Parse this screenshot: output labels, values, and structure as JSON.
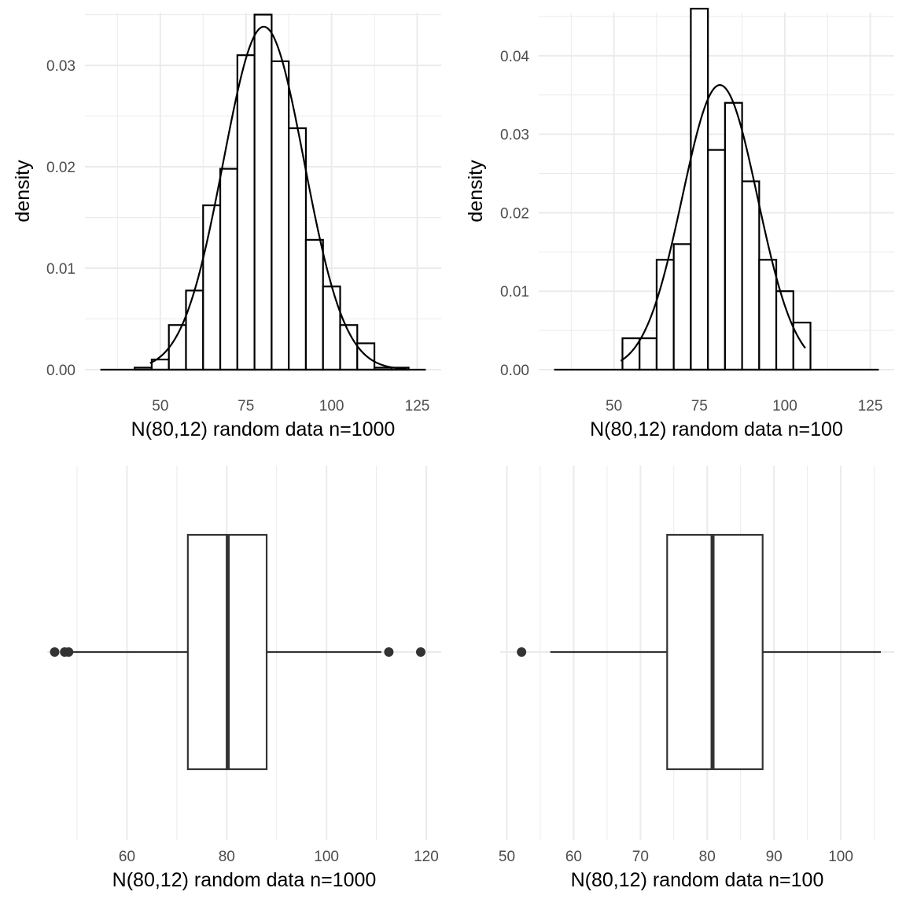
{
  "chart_data": [
    {
      "type": "bar",
      "subtype": "histogram-with-density",
      "xlabel": "N(80,12) random data n=1000",
      "ylabel": "density",
      "x_ticks": [
        50,
        75,
        100,
        125
      ],
      "x_ticks_label": [
        "50",
        "75",
        "100",
        "125"
      ],
      "y_ticks": [
        0,
        0.01,
        0.02,
        0.03
      ],
      "y_ticks_label": [
        "0.00",
        "0.01",
        "0.02",
        "0.03"
      ],
      "xlim": [
        28,
        132
      ],
      "ylim": [
        0,
        0.0352
      ],
      "grid": true,
      "bins": [
        {
          "x0": 32.5,
          "x1": 37.5,
          "density": 0
        },
        {
          "x0": 37.5,
          "x1": 42.5,
          "density": 0
        },
        {
          "x0": 42.5,
          "x1": 47.5,
          "density": 0.0002
        },
        {
          "x0": 47.5,
          "x1": 52.5,
          "density": 0.001
        },
        {
          "x0": 52.5,
          "x1": 57.5,
          "density": 0.0044
        },
        {
          "x0": 57.5,
          "x1": 62.5,
          "density": 0.0078
        },
        {
          "x0": 62.5,
          "x1": 67.5,
          "density": 0.0162
        },
        {
          "x0": 67.5,
          "x1": 72.5,
          "density": 0.0198
        },
        {
          "x0": 72.5,
          "x1": 77.5,
          "density": 0.031
        },
        {
          "x0": 77.5,
          "x1": 82.5,
          "density": 0.035
        },
        {
          "x0": 82.5,
          "x1": 87.5,
          "density": 0.0304
        },
        {
          "x0": 87.5,
          "x1": 92.5,
          "density": 0.0238
        },
        {
          "x0": 92.5,
          "x1": 97.5,
          "density": 0.0128
        },
        {
          "x0": 97.5,
          "x1": 102.5,
          "density": 0.0082
        },
        {
          "x0": 102.5,
          "x1": 107.5,
          "density": 0.0044
        },
        {
          "x0": 107.5,
          "x1": 112.5,
          "density": 0.0026
        },
        {
          "x0": 112.5,
          "x1": 117.5,
          "density": 0.0002
        },
        {
          "x0": 117.5,
          "x1": 122.5,
          "density": 0.0002
        },
        {
          "x0": 122.5,
          "x1": 127.5,
          "density": 0
        }
      ],
      "density_curve": {
        "mean": 80.2,
        "sd": 11.8,
        "from": 47,
        "to": 122
      }
    },
    {
      "type": "bar",
      "subtype": "histogram-with-density",
      "xlabel": "N(80,12) random data n=100",
      "ylabel": "density",
      "x_ticks": [
        50,
        75,
        100,
        125
      ],
      "x_ticks_label": [
        "50",
        "75",
        "100",
        "125"
      ],
      "y_ticks": [
        0,
        0.01,
        0.02,
        0.03,
        0.04
      ],
      "y_ticks_label": [
        "0.00",
        "0.01",
        "0.02",
        "0.03",
        "0.04"
      ],
      "xlim": [
        28,
        132
      ],
      "ylim": [
        0,
        0.0455
      ],
      "grid": true,
      "bins": [
        {
          "x0": 32.5,
          "x1": 37.5,
          "density": 0
        },
        {
          "x0": 37.5,
          "x1": 42.5,
          "density": 0
        },
        {
          "x0": 42.5,
          "x1": 47.5,
          "density": 0
        },
        {
          "x0": 47.5,
          "x1": 52.5,
          "density": 0
        },
        {
          "x0": 52.5,
          "x1": 57.5,
          "density": 0.004
        },
        {
          "x0": 57.5,
          "x1": 62.5,
          "density": 0.004
        },
        {
          "x0": 62.5,
          "x1": 67.5,
          "density": 0.014
        },
        {
          "x0": 67.5,
          "x1": 72.5,
          "density": 0.016
        },
        {
          "x0": 72.5,
          "x1": 77.5,
          "density": 0.046
        },
        {
          "x0": 77.5,
          "x1": 82.5,
          "density": 0.028
        },
        {
          "x0": 82.5,
          "x1": 87.5,
          "density": 0.034
        },
        {
          "x0": 87.5,
          "x1": 92.5,
          "density": 0.024
        },
        {
          "x0": 92.5,
          "x1": 97.5,
          "density": 0.014
        },
        {
          "x0": 97.5,
          "x1": 102.5,
          "density": 0.01
        },
        {
          "x0": 102.5,
          "x1": 107.5,
          "density": 0.006
        },
        {
          "x0": 107.5,
          "x1": 112.5,
          "density": 0
        },
        {
          "x0": 112.5,
          "x1": 117.5,
          "density": 0
        },
        {
          "x0": 117.5,
          "x1": 122.5,
          "density": 0
        },
        {
          "x0": 122.5,
          "x1": 127.5,
          "density": 0
        }
      ],
      "density_curve": {
        "mean": 81,
        "sd": 11,
        "from": 52,
        "to": 106
      }
    },
    {
      "type": "boxplot",
      "xlabel": "N(80,12) random data n=1000",
      "x_ticks": [
        60,
        80,
        100,
        120
      ],
      "x_ticks_label": [
        "60",
        "80",
        "100",
        "120"
      ],
      "xlim": [
        44,
        123
      ],
      "grid": true,
      "box": {
        "whisker_low": 49,
        "q1": 72.2,
        "median": 80.2,
        "q3": 88,
        "whisker_high": 111
      },
      "outliers": [
        45.5,
        47.5,
        48.3,
        112.5,
        118.9
      ]
    },
    {
      "type": "boxplot",
      "xlabel": "N(80,12) random data n=100",
      "x_ticks": [
        50,
        60,
        70,
        80,
        90,
        100
      ],
      "x_ticks_label": [
        "50",
        "60",
        "70",
        "80",
        "90",
        "100"
      ],
      "xlim": [
        49,
        108
      ],
      "grid": true,
      "box": {
        "whisker_low": 56.5,
        "q1": 74,
        "median": 80.8,
        "q3": 88.3,
        "whisker_high": 106
      },
      "outliers": [
        52.2
      ]
    }
  ]
}
